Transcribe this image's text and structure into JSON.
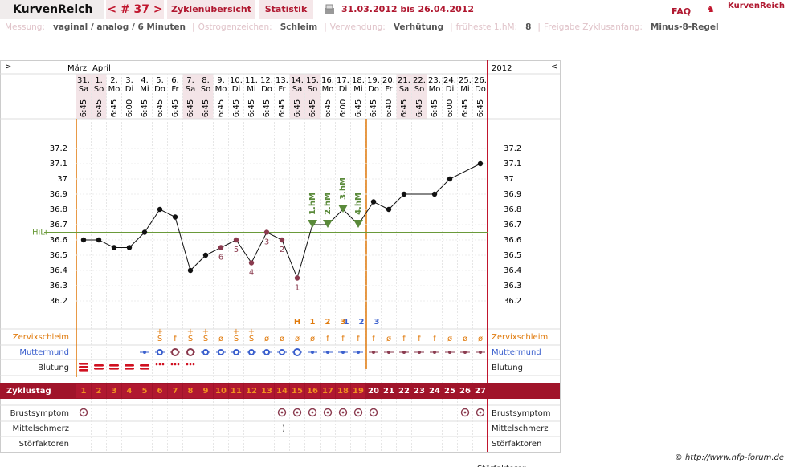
{
  "header": {
    "logo": "KurvenReich",
    "cycle": "< # 37 >",
    "tabs": [
      "Zyklenübersicht",
      "Statistik"
    ],
    "range": "31.03.2012 bis 26.04.2012",
    "faq": "FAQ",
    "brand": "KurvenReich"
  },
  "settings": [
    {
      "label": "Messung:",
      "value": "vaginal / analog / 6 Minuten"
    },
    {
      "label": "Östrogenzeichen:",
      "value": "Schleim"
    },
    {
      "label": "Verwendung:",
      "value": "Verhütung"
    },
    {
      "label": "früheste 1.hM:",
      "value": "8"
    },
    {
      "label": "Freigabe Zyklusanfang:",
      "value": "Minus-8-Regel"
    }
  ],
  "chart": {
    "nav_left": ">",
    "nav_right": "<",
    "months": [
      "März",
      "April"
    ],
    "year": "2012",
    "days": [
      "31.",
      "1.",
      "2.",
      "3.",
      "4.",
      "5.",
      "6.",
      "7.",
      "8.",
      "9.",
      "10.",
      "11.",
      "12.",
      "13.",
      "14.",
      "15.",
      "16.",
      "17.",
      "18.",
      "19.",
      "20.",
      "21.",
      "22.",
      "23.",
      "24.",
      "25.",
      "26."
    ],
    "weekdays": [
      "Sa",
      "So",
      "Mo",
      "Di",
      "Mi",
      "Do",
      "Fr",
      "Sa",
      "So",
      "Mo",
      "Di",
      "Mi",
      "Do",
      "Fr",
      "Sa",
      "So",
      "Mo",
      "Di",
      "Mi",
      "Do",
      "Fr",
      "Sa",
      "So",
      "Mo",
      "Di",
      "Mi",
      "Do"
    ],
    "times": [
      "6:45",
      "6:45",
      "6:45",
      "6:00",
      "6:45",
      "6:45",
      "6:45",
      "6:45",
      "6:45",
      "6:45",
      "6:45",
      "6:45",
      "6:45",
      "6:45",
      "6:45",
      "6:45",
      "6:45",
      "6:00",
      "6:45",
      "6:45",
      "6:40",
      "6:45",
      "6:45",
      "6:45",
      "6:00",
      "6:45",
      "6:45"
    ],
    "temperatures": [
      36.6,
      36.6,
      36.55,
      36.55,
      36.65,
      36.8,
      36.75,
      36.4,
      36.5,
      36.55,
      36.6,
      36.45,
      36.65,
      36.6,
      36.35,
      36.7,
      36.7,
      36.8,
      36.7,
      36.85,
      36.8,
      36.9,
      null,
      36.9,
      37.0,
      null,
      37.1
    ],
    "ylim": [
      36.1,
      37.4
    ],
    "yticks": [
      36.2,
      36.3,
      36.4,
      36.5,
      36.6,
      36.7,
      36.8,
      36.9,
      37,
      37.1,
      37.2
    ],
    "hili": {
      "label": "HiLi",
      "value": 36.65
    },
    "count_labels": [
      null,
      null,
      null,
      null,
      null,
      null,
      null,
      null,
      null,
      "6",
      "5",
      "4",
      "3",
      "2",
      "1",
      null,
      null,
      null,
      null,
      null,
      null,
      null,
      null,
      null,
      null,
      null,
      null
    ],
    "hm_labels": [
      null,
      null,
      null,
      null,
      null,
      null,
      null,
      null,
      null,
      null,
      null,
      null,
      null,
      null,
      null,
      "1.hM",
      "2.hM",
      "3.hM",
      "4.hM",
      null,
      null,
      null,
      null,
      null,
      null,
      null,
      null
    ],
    "mucus_counts": [
      null,
      null,
      null,
      null,
      null,
      null,
      null,
      null,
      null,
      null,
      null,
      null,
      null,
      null,
      "H",
      "1",
      "2",
      "3",
      null,
      null,
      null,
      null,
      null,
      null,
      null,
      null,
      null
    ],
    "cervix_counts": [
      null,
      null,
      null,
      null,
      null,
      null,
      null,
      null,
      null,
      null,
      null,
      null,
      null,
      null,
      null,
      null,
      null,
      "1",
      "2",
      "3",
      null,
      null,
      null,
      null,
      null,
      null,
      null
    ],
    "cervix_mucus": [
      null,
      null,
      null,
      null,
      null,
      "S",
      "f",
      "S",
      "S",
      "ø",
      "S",
      "S",
      "ø",
      "ø",
      "ø",
      "ø",
      "f",
      "f",
      "f",
      "f",
      "ø",
      "f",
      "f",
      "f",
      "ø",
      "ø",
      "ø"
    ],
    "mucus_plus": [
      null,
      null,
      null,
      null,
      null,
      "+",
      null,
      "+",
      "+",
      null,
      "+",
      "+",
      null,
      null,
      null,
      null,
      null,
      null,
      null,
      null,
      null,
      null,
      null,
      null,
      null,
      null,
      null
    ],
    "row_labels": {
      "mucus": "Zervixschleim",
      "cervix": "Muttermund",
      "bleeding": "Blutung",
      "cycle_day": "Zyklustag",
      "breast": "Brustsymptom",
      "midpain": "Mittelschmerz",
      "disturb": "Störfaktoren"
    },
    "cycle_days": [
      1,
      2,
      3,
      4,
      5,
      6,
      7,
      8,
      9,
      10,
      11,
      12,
      13,
      14,
      15,
      16,
      17,
      18,
      19,
      20,
      21,
      22,
      23,
      24,
      25,
      26,
      27
    ],
    "midpain": [
      null,
      null,
      null,
      null,
      null,
      null,
      null,
      null,
      null,
      null,
      null,
      null,
      null,
      ")",
      null,
      null,
      null,
      null,
      null,
      null,
      null,
      null,
      null,
      null,
      null,
      null,
      null
    ]
  },
  "footer": {
    "copyright": "© http://www.nfp-forum.de",
    "cut_label": "Störfaktoren"
  }
}
